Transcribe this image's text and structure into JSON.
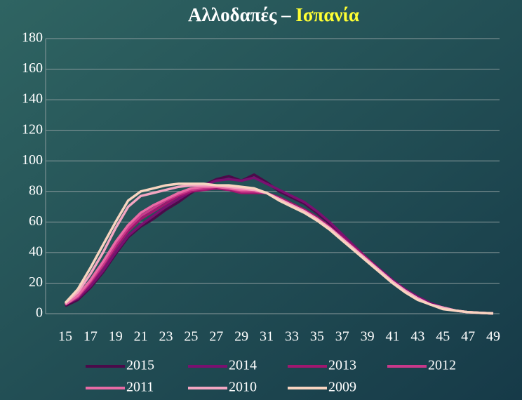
{
  "chart_data": {
    "type": "line",
    "title_parts": [
      "Αλλοδαπές –",
      "Ισπανία"
    ],
    "title_colors": [
      "#ffffff",
      "#ffff33"
    ],
    "x": [
      15,
      16,
      17,
      18,
      19,
      20,
      21,
      22,
      23,
      24,
      25,
      26,
      27,
      28,
      29,
      30,
      31,
      32,
      33,
      34,
      35,
      36,
      37,
      38,
      39,
      40,
      41,
      42,
      43,
      44,
      45,
      46,
      47,
      48,
      49
    ],
    "xlim": [
      15,
      49
    ],
    "xticks": [
      15,
      17,
      19,
      21,
      23,
      25,
      27,
      29,
      31,
      33,
      35,
      37,
      39,
      41,
      43,
      45,
      47,
      49
    ],
    "ylim": [
      0,
      180
    ],
    "yticks": [
      0,
      20,
      40,
      60,
      80,
      100,
      120,
      140,
      160,
      180
    ],
    "grid": true,
    "legend": "bottom",
    "series": [
      {
        "name": "2015",
        "color": "#4b0a4a",
        "values": [
          5,
          9,
          17,
          27,
          39,
          50,
          57,
          62,
          68,
          73,
          79,
          84,
          88,
          90,
          87,
          91,
          86,
          80,
          76,
          72,
          66,
          59,
          51,
          43,
          35,
          28,
          21,
          15,
          10,
          6,
          4,
          2,
          1,
          0.5,
          0.2
        ]
      },
      {
        "name": "2014",
        "color": "#7a1070",
        "values": [
          6,
          10,
          18,
          28,
          40,
          51,
          58,
          64,
          70,
          75,
          80,
          84,
          87,
          88,
          87,
          89,
          85,
          81,
          77,
          73,
          67,
          60,
          52,
          44,
          36,
          29,
          22,
          16,
          11,
          7,
          4,
          2,
          1,
          0.5,
          0.2
        ]
      },
      {
        "name": "2013",
        "color": "#a0176f",
        "values": [
          6,
          11,
          20,
          31,
          43,
          54,
          62,
          67,
          72,
          77,
          80,
          81,
          82,
          81,
          79,
          79,
          79,
          76,
          72,
          68,
          63,
          57,
          50,
          43,
          36,
          28,
          21,
          15,
          10,
          6,
          4,
          2,
          1,
          0.5,
          0.2
        ]
      },
      {
        "name": "2012",
        "color": "#c8388a",
        "values": [
          6,
          11,
          21,
          32,
          45,
          56,
          64,
          69,
          74,
          78,
          81,
          82,
          83,
          82,
          80,
          80,
          79,
          75,
          71,
          67,
          62,
          56,
          49,
          42,
          35,
          28,
          21,
          15,
          10,
          6,
          4,
          2,
          1,
          0.5,
          0.2
        ]
      },
      {
        "name": "2011",
        "color": "#e86aa5",
        "values": [
          6,
          12,
          22,
          34,
          47,
          58,
          66,
          71,
          75,
          79,
          82,
          83,
          83,
          82,
          81,
          81,
          79,
          75,
          71,
          67,
          62,
          56,
          49,
          42,
          35,
          28,
          21,
          15,
          10,
          6,
          4,
          2,
          1,
          0.5,
          0.2
        ]
      },
      {
        "name": "2010",
        "color": "#f4a6c2",
        "values": [
          7,
          14,
          26,
          40,
          56,
          70,
          77,
          79,
          81,
          83,
          84,
          84,
          84,
          83,
          82,
          81,
          79,
          75,
          71,
          67,
          62,
          56,
          49,
          42,
          35,
          28,
          21,
          15,
          10,
          6,
          4,
          2,
          1,
          0.5,
          0.2
        ]
      },
      {
        "name": "2009",
        "color": "#f8d4c0",
        "values": [
          7,
          16,
          30,
          45,
          60,
          74,
          80,
          82,
          84,
          85,
          85,
          85,
          84,
          84,
          83,
          82,
          79,
          74,
          70,
          66,
          61,
          55,
          48,
          41,
          34,
          27,
          20,
          14,
          9,
          6,
          3,
          2,
          1,
          0.5,
          0.2
        ]
      }
    ]
  }
}
